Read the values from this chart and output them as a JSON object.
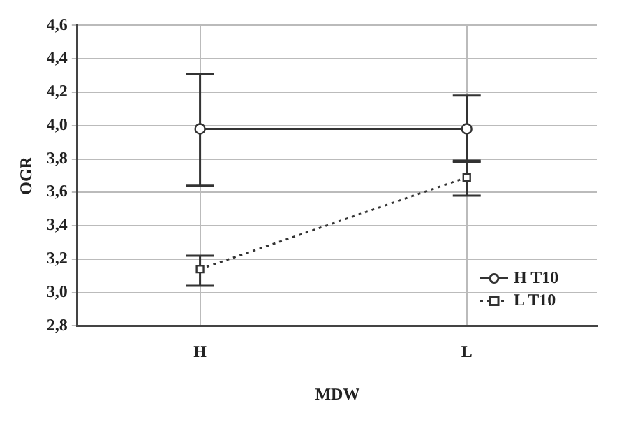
{
  "chart_data": {
    "type": "line",
    "xlabel": "MDW",
    "ylabel": "OGR",
    "categories": [
      "H",
      "L"
    ],
    "series": [
      {
        "name": "H T10",
        "color": "#333333",
        "values": [
          3.98,
          3.98
        ],
        "errors": [
          [
            3.64,
            4.31
          ],
          [
            3.78,
            4.18
          ]
        ],
        "marker": "circle",
        "line_style": "solid"
      },
      {
        "name": "L T10",
        "color": "#333333",
        "values": [
          3.14,
          3.69
        ],
        "errors": [
          [
            3.04,
            3.22
          ],
          [
            3.58,
            3.79
          ]
        ],
        "marker": "square",
        "line_style": "dotted"
      }
    ],
    "ylim": [
      2.8,
      4.6
    ],
    "yticks": [
      {
        "value": 2.8,
        "label": "2,8"
      },
      {
        "value": 3.0,
        "label": "3,0"
      },
      {
        "value": 3.2,
        "label": "3,2"
      },
      {
        "value": 3.4,
        "label": "3,4"
      },
      {
        "value": 3.6,
        "label": "3,6"
      },
      {
        "value": 3.8,
        "label": "3,8"
      },
      {
        "value": 4.0,
        "label": "4,0"
      },
      {
        "value": 4.2,
        "label": "4,2"
      },
      {
        "value": 4.4,
        "label": "4,4"
      },
      {
        "value": 4.6,
        "label": "4,6"
      }
    ],
    "grid": true,
    "legend": "bottom right"
  }
}
